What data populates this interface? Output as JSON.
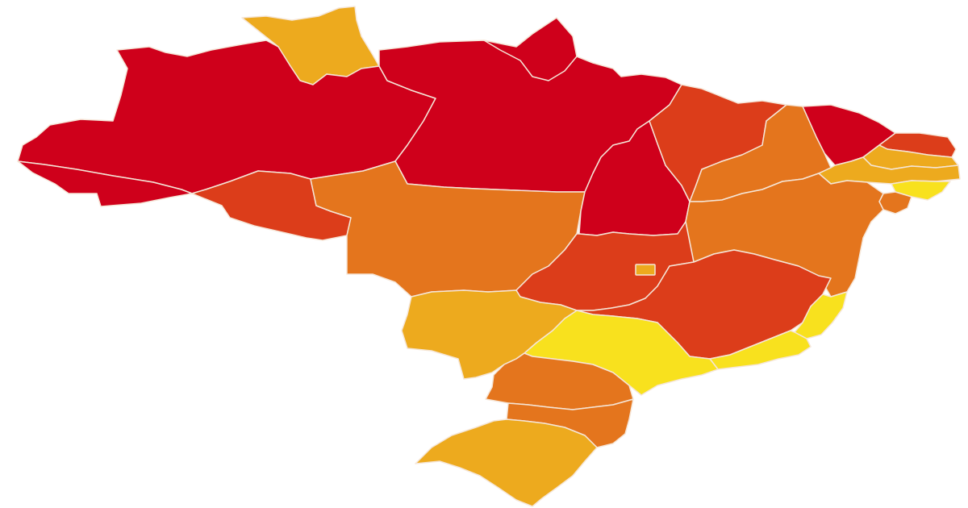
{
  "map": {
    "country": "Brazil",
    "palette": {
      "level_1": "#f8e11e",
      "level_2": "#edaa1e",
      "level_3": "#e4751d",
      "level_4": "#dc3d1a",
      "level_5": "#cf001b",
      "border": "#f5e6d8",
      "background": "#ffffff"
    },
    "states": [
      {
        "id": "AM",
        "level": 5
      },
      {
        "id": "RR",
        "level": 2
      },
      {
        "id": "PA",
        "level": 5
      },
      {
        "id": "AP",
        "level": 5
      },
      {
        "id": "AC",
        "level": 5
      },
      {
        "id": "RO",
        "level": 4
      },
      {
        "id": "MT",
        "level": 3
      },
      {
        "id": "TO",
        "level": 5
      },
      {
        "id": "MA",
        "level": 4
      },
      {
        "id": "PI",
        "level": 3
      },
      {
        "id": "CE",
        "level": 5
      },
      {
        "id": "RN",
        "level": 4
      },
      {
        "id": "PB",
        "level": 2
      },
      {
        "id": "PE",
        "level": 2
      },
      {
        "id": "AL",
        "level": 1
      },
      {
        "id": "SE",
        "level": 3
      },
      {
        "id": "BA",
        "level": 3
      },
      {
        "id": "GO",
        "level": 4
      },
      {
        "id": "DF",
        "level": 2
      },
      {
        "id": "MG",
        "level": 4
      },
      {
        "id": "ES",
        "level": 1
      },
      {
        "id": "RJ",
        "level": 1
      },
      {
        "id": "SP",
        "level": 1
      },
      {
        "id": "MS",
        "level": 2
      },
      {
        "id": "PR",
        "level": 3
      },
      {
        "id": "SC",
        "level": 3
      },
      {
        "id": "RS",
        "level": 2
      }
    ]
  }
}
